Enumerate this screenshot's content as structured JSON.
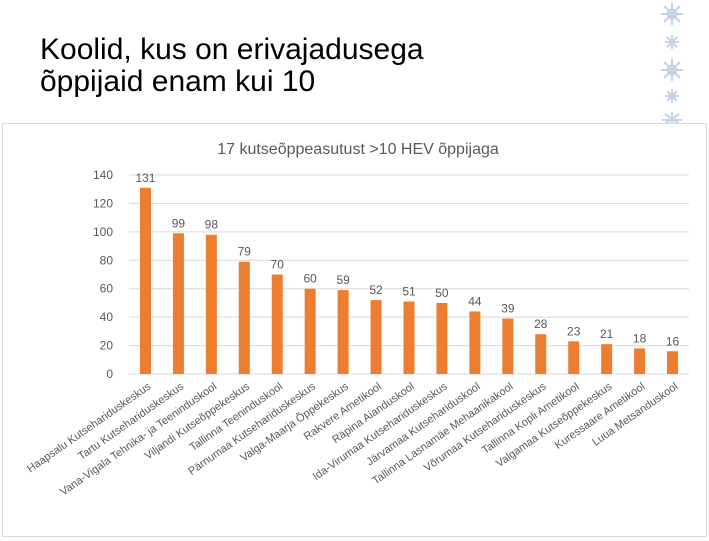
{
  "slide": {
    "title_line1": "Koolid, kus on erivajadusega",
    "title_line2": "õppijaid enam kui 10"
  },
  "colors": {
    "bar": "#ed7d31",
    "grid": "#d9d9d9",
    "axis_text": "#595959",
    "deco": "#c5d3e8"
  },
  "chart_data": {
    "type": "bar",
    "title": "17 kutseõppeasutust  >10 HEV õppijaga",
    "xlabel": "",
    "ylabel": "",
    "ylim": [
      0,
      140
    ],
    "yticks": [
      0,
      20,
      40,
      60,
      80,
      100,
      120,
      140
    ],
    "grid": true,
    "legend": "none",
    "categories": [
      "Haapsalu Kutsehariduskeskus",
      "Tartu Kutsehariduskeskus",
      "Vana-Vigala Tehnika- ja Teeninduskool",
      "Viljandi Kutseõppekeskus",
      "Tallinna Teeninduskool",
      "Pärnumaa Kutsehariduskeskus",
      "Valga-Maarja Õppekeskus",
      "Rakvere Ametikool",
      "Räpina Aianduskool",
      "Ida-Virumaa Kutsehariduskeskus",
      "Järvamaa Kutsehariduskool",
      "Tallinna Lasnamäe Mehaanikakool",
      "Võrumaa Kutsehariduskeskus",
      "Tallinna Kopli Ametikool",
      "Valgamaa Kutseõppekeskus",
      "Kuressaare Ametikool",
      "Luua Metsanduskool"
    ],
    "values": [
      131,
      99,
      98,
      79,
      70,
      60,
      59,
      52,
      51,
      50,
      44,
      39,
      28,
      23,
      21,
      18,
      16
    ]
  }
}
